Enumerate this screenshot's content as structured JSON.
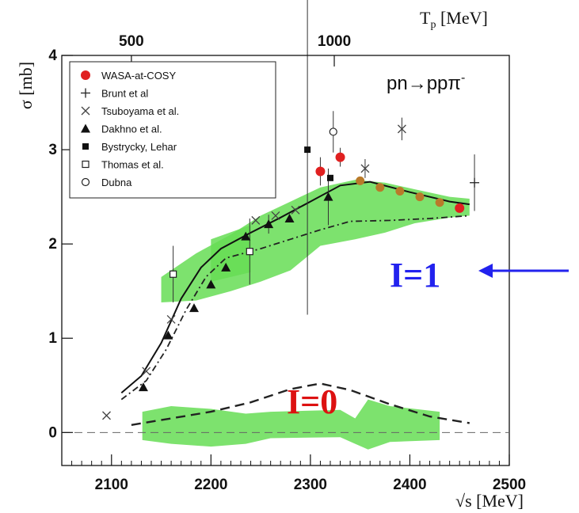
{
  "chart_data": {
    "type": "scatter",
    "title": "",
    "xlabel": "√s [MeV]",
    "ylabel": "σ [mb]",
    "x2label": "T",
    "x2label_sub": "p",
    "x2label_unit": " [MeV]",
    "reaction": "pn→ppπ",
    "reaction_sup": "-",
    "xlim": [
      2050,
      2500
    ],
    "ylim": [
      -0.35,
      4
    ],
    "xticks": [
      "2100",
      "2200",
      "2300",
      "2400",
      "2500"
    ],
    "yticks": [
      "0",
      "1",
      "2",
      "3",
      "4"
    ],
    "top_ticks": [
      {
        "label": "500",
        "x": 2120
      },
      {
        "label": "1000",
        "x": 2324
      }
    ],
    "grid": false,
    "legend_position": "top-left",
    "colors": {
      "wasa": "#e02020",
      "band": "#66dd55",
      "arrow": "#2222ee",
      "i1": "#2222ee",
      "i0": "#dd1111"
    },
    "annotations": {
      "i1": "I=1",
      "i0": "I=0"
    },
    "series": [
      {
        "name": "WASA-at-COSY",
        "marker": "filled-circle-red",
        "points": [
          [
            2310,
            2.77
          ],
          [
            2330,
            2.92
          ],
          [
            2450,
            2.38
          ]
        ]
      },
      {
        "name": "WASA-at-COSY",
        "marker": "filled-circle-olive",
        "points": [
          [
            2350,
            2.67
          ],
          [
            2370,
            2.6
          ],
          [
            2390,
            2.56
          ],
          [
            2410,
            2.5
          ],
          [
            2430,
            2.44
          ]
        ]
      },
      {
        "name": "Brunt et al",
        "marker": "plus",
        "points": [
          [
            2465,
            2.65
          ]
        ]
      },
      {
        "name": "Tsuboyama et al.",
        "marker": "cross",
        "points": [
          [
            2095,
            0.18
          ],
          [
            2135,
            0.65
          ],
          [
            2160,
            1.2
          ],
          [
            2245,
            2.25
          ],
          [
            2265,
            2.3
          ],
          [
            2285,
            2.36
          ],
          [
            2355,
            2.8
          ],
          [
            2392,
            3.22
          ]
        ]
      },
      {
        "name": "Dakhno et al.",
        "marker": "filled-triangle",
        "points": [
          [
            2132,
            0.48
          ],
          [
            2157,
            1.03
          ],
          [
            2183,
            1.32
          ],
          [
            2200,
            1.57
          ],
          [
            2215,
            1.75
          ],
          [
            2235,
            2.08
          ],
          [
            2258,
            2.21
          ],
          [
            2279,
            2.27
          ],
          [
            2318,
            2.5
          ]
        ]
      },
      {
        "name": "Bystrycky, Lehar",
        "marker": "filled-square",
        "points": [
          [
            2297,
            3.0
          ],
          [
            2320,
            2.7
          ]
        ]
      },
      {
        "name": "Thomas et al.",
        "marker": "open-square",
        "points": [
          [
            2162,
            1.68
          ],
          [
            2239,
            1.92
          ]
        ]
      },
      {
        "name": "Dubna",
        "marker": "open-circle",
        "points": [
          [
            2323,
            3.19
          ]
        ]
      }
    ]
  }
}
